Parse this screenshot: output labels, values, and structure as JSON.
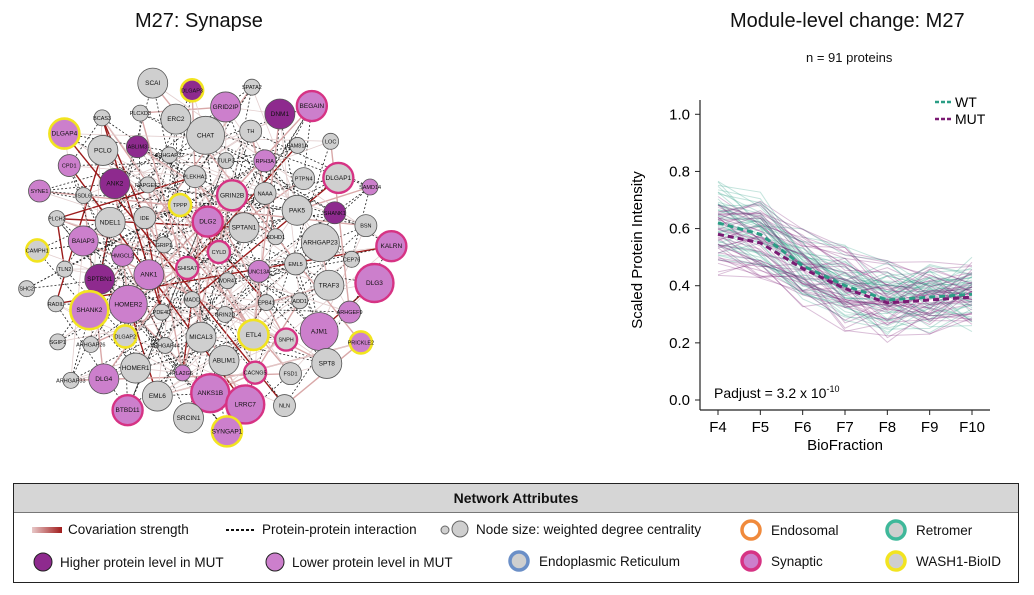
{
  "network": {
    "title": "M27: Synapse",
    "nodes": [
      {
        "label": "CYLD",
        "type": "syn",
        "size": "s"
      },
      {
        "label": "SHISA7",
        "type": "syn",
        "size": "s"
      },
      {
        "label": "DLG2",
        "type": "low",
        "ring": "syn",
        "size": "m"
      },
      {
        "label": "WDR47",
        "type": "none",
        "size": "xs"
      },
      {
        "label": "GRIP1",
        "type": "none",
        "size": "xs"
      },
      {
        "label": "SPTAN1",
        "type": "none",
        "size": "m"
      },
      {
        "label": "MADD",
        "type": "none",
        "size": "xs"
      },
      {
        "label": "TPPP",
        "type": "wash",
        "size": "s"
      },
      {
        "label": "UNC13A",
        "type": "low",
        "size": "s"
      },
      {
        "label": "ANK1",
        "type": "low",
        "size": "m"
      },
      {
        "label": "GRIN2B",
        "type": "syn",
        "size": "m"
      },
      {
        "label": "GRIN2D",
        "type": "none",
        "size": "xs"
      },
      {
        "label": "IDE",
        "type": "none",
        "size": "s"
      },
      {
        "label": "BDHD1",
        "type": "none",
        "size": "xs"
      },
      {
        "label": "PDE4D",
        "type": "none",
        "size": "xs"
      },
      {
        "label": "PLEKHA1",
        "type": "none",
        "size": "s"
      },
      {
        "label": "EPB41",
        "type": "none",
        "size": "xs"
      },
      {
        "label": "HMGCL2",
        "type": "low",
        "size": "s"
      },
      {
        "label": "NAAA",
        "type": "none",
        "size": "s"
      },
      {
        "label": "MICAL3",
        "type": "none",
        "size": "m"
      },
      {
        "label": "RAPGEF2",
        "type": "none",
        "size": "xs"
      },
      {
        "label": "EML5",
        "type": "none",
        "size": "s"
      },
      {
        "label": "HOMER2",
        "type": "low",
        "size": "l"
      },
      {
        "label": "TULP3",
        "type": "none",
        "size": "xs"
      },
      {
        "label": "ETL4",
        "type": "wash",
        "size": "m"
      },
      {
        "label": "NDEL1",
        "type": "none",
        "size": "m"
      },
      {
        "label": "PAK5",
        "type": "none",
        "size": "m"
      },
      {
        "label": "ARHGAP44",
        "type": "none",
        "size": "xs"
      },
      {
        "label": "ARHGAP32",
        "type": "none",
        "size": "xs"
      },
      {
        "label": "ADD1",
        "type": "none",
        "size": "xs"
      },
      {
        "label": "SPTBN1",
        "type": "high",
        "size": "m"
      },
      {
        "label": "RPH3A",
        "type": "low",
        "size": "s"
      },
      {
        "label": "ABLIM1",
        "type": "none",
        "size": "m"
      },
      {
        "label": "ANK2",
        "type": "high",
        "size": "m"
      },
      {
        "label": "ARHGAP23",
        "type": "none",
        "size": "l"
      },
      {
        "label": "DLGAP2",
        "type": "wash",
        "size": "s"
      },
      {
        "label": "CHAT",
        "type": "none",
        "size": "l"
      },
      {
        "label": "SNPH",
        "type": "syn",
        "size": "s"
      },
      {
        "label": "BAIAP3",
        "type": "low",
        "size": "m"
      },
      {
        "label": "PTPN4",
        "type": "none",
        "size": "s"
      },
      {
        "label": "PLA2G6",
        "type": "low",
        "size": "xs"
      },
      {
        "label": "ABLIM3",
        "type": "high",
        "size": "s"
      },
      {
        "label": "TRAF3",
        "type": "none",
        "size": "m"
      },
      {
        "label": "SHANK2",
        "type": "low",
        "ring": "wash",
        "size": "l"
      },
      {
        "label": "TH",
        "type": "none",
        "size": "s"
      },
      {
        "label": "CACNG5",
        "type": "syn",
        "size": "s"
      },
      {
        "label": "ISDL6",
        "type": "none",
        "size": "xs"
      },
      {
        "label": "SHANK1",
        "type": "high",
        "size": "s"
      },
      {
        "label": "HOMER1",
        "type": "none",
        "size": "m"
      },
      {
        "label": "ERC2",
        "type": "none",
        "size": "m"
      },
      {
        "label": "AJM1",
        "type": "low",
        "size": "l"
      },
      {
        "label": "TLN2",
        "type": "none",
        "size": "xs"
      },
      {
        "label": "FAM81A",
        "type": "none",
        "size": "xs"
      },
      {
        "label": "ANKS1B",
        "type": "low",
        "ring": "syn",
        "size": "l"
      },
      {
        "label": "PCLO",
        "type": "none",
        "size": "m"
      },
      {
        "label": "CEP76",
        "type": "none",
        "size": "xs"
      },
      {
        "label": "ARHGAP26",
        "type": "none",
        "size": "xs"
      },
      {
        "label": "GRID2IP",
        "type": "low",
        "size": "m"
      },
      {
        "label": "FSD1",
        "type": "none",
        "size": "s"
      },
      {
        "label": "PLCH2",
        "type": "none",
        "size": "xs"
      },
      {
        "label": "DLGAP1",
        "type": "syn",
        "size": "m"
      },
      {
        "label": "EML6",
        "type": "none",
        "size": "m"
      },
      {
        "label": "PLCXD3",
        "type": "none",
        "size": "xs"
      },
      {
        "label": "ARHGEF9",
        "type": "low",
        "size": "s"
      },
      {
        "label": "RADIL",
        "type": "none",
        "size": "xs"
      },
      {
        "label": "DNM1",
        "type": "high",
        "size": "m"
      },
      {
        "label": "LRRC7",
        "type": "low",
        "ring": "syn",
        "size": "l"
      },
      {
        "label": "CPD1",
        "type": "low",
        "size": "s"
      },
      {
        "label": "BSN",
        "type": "none",
        "size": "s"
      },
      {
        "label": "DLG4",
        "type": "low",
        "size": "m"
      },
      {
        "label": "DLGAP3",
        "type": "high",
        "ring": "wash",
        "size": "s"
      },
      {
        "label": "SPT8",
        "type": "none",
        "size": "m"
      },
      {
        "label": "CAMPH1",
        "type": "wash",
        "size": "s"
      },
      {
        "label": "LOC",
        "type": "none",
        "size": "xs"
      },
      {
        "label": "SRCIN1",
        "type": "none",
        "size": "m"
      },
      {
        "label": "BCAS3",
        "type": "none",
        "size": "xs"
      },
      {
        "label": "DLG3",
        "type": "low",
        "ring": "syn",
        "size": "l"
      },
      {
        "label": "SGIP1",
        "type": "none",
        "size": "xs"
      },
      {
        "label": "SPATA2",
        "type": "none",
        "size": "xs"
      },
      {
        "label": "NLN",
        "type": "none",
        "size": "s"
      },
      {
        "label": "SYNE1",
        "type": "low",
        "size": "s"
      },
      {
        "label": "SAMD14",
        "type": "low",
        "size": "xs"
      },
      {
        "label": "BTBD11",
        "type": "low",
        "ring": "syn",
        "size": "m"
      },
      {
        "label": "SCAI",
        "type": "none",
        "size": "m"
      },
      {
        "label": "PRICKLE2",
        "type": "low",
        "ring": "wash",
        "size": "s"
      },
      {
        "label": "SHC2",
        "type": "none",
        "size": "xs"
      },
      {
        "label": "BEGAIN",
        "type": "low",
        "ring": "syn",
        "size": "m"
      },
      {
        "label": "SYNGAP1",
        "type": "low",
        "ring": "wash",
        "size": "m"
      },
      {
        "label": "DLGAP4",
        "type": "low",
        "ring": "wash",
        "size": "m"
      },
      {
        "label": "KALRN",
        "type": "low",
        "ring": "syn",
        "size": "m"
      },
      {
        "label": "ARHGAP33",
        "type": "none",
        "size": "xs"
      }
    ]
  },
  "chart_data": {
    "type": "line",
    "title": "Module-level change: M27",
    "subtitle": "n = 91 proteins",
    "xlabel": "BioFraction",
    "ylabel": "Scaled Protein Intensity",
    "categories": [
      "F4",
      "F5",
      "F6",
      "F7",
      "F8",
      "F9",
      "F10"
    ],
    "yticks": [
      "0.0",
      "0.2",
      "0.4",
      "0.6",
      "0.8",
      "1.0"
    ],
    "ylim": [
      0,
      1.05
    ],
    "series": [
      {
        "name": "WT",
        "color": "#2a9d85",
        "values": [
          0.62,
          0.58,
          0.47,
          0.4,
          0.35,
          0.36,
          0.37
        ]
      },
      {
        "name": "MUT",
        "color": "#7b1a73",
        "values": [
          0.58,
          0.55,
          0.46,
          0.39,
          0.34,
          0.35,
          0.36
        ]
      }
    ],
    "annotation": "Padjust = 3.2 x 10",
    "annotation_exp": "-10",
    "legend": "top-right"
  },
  "legend": {
    "title": "Network Attributes",
    "items": {
      "covariation": "Covariation strength",
      "ppi": "Protein-protein interaction",
      "node_size": "Node size: weighted degree centrality",
      "endosomal": "Endosomal",
      "retromer": "Retromer",
      "higher": "Higher protein level in MUT",
      "lower": "Lower protein level in MUT",
      "er": "Endoplasmic Reticulum",
      "synaptic": "Synaptic",
      "wash": "WASH1-BioID"
    },
    "colors": {
      "high": "#8e2a8e",
      "low": "#cc7fcc",
      "none": "#cfcfcf",
      "syn_ring": "#d63384",
      "wash_ring": "#f2e420",
      "endo_ring": "#f08a3c",
      "retro_ring": "#3fb89a",
      "er_ring": "#6b8fc7"
    }
  }
}
